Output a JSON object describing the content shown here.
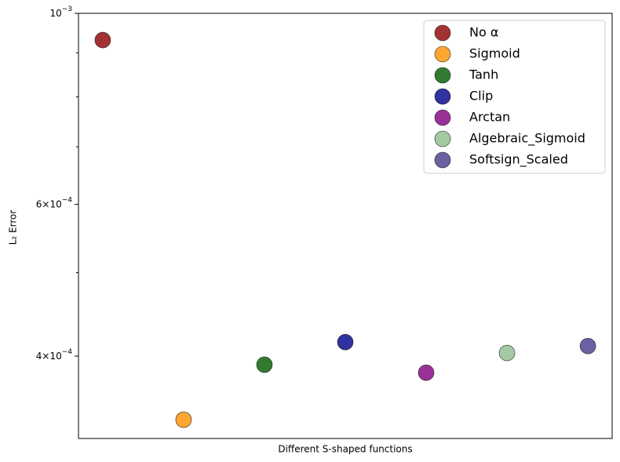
{
  "chart_data": {
    "type": "scatter",
    "xlabel": "Different S-shaped functions",
    "ylabel": "L₂ Error",
    "log_y": true,
    "xlim": [
      -0.3,
      6.3
    ],
    "ylim": [
      0.000321,
      0.001
    ],
    "yticks": [
      {
        "value": 0.0004,
        "label": "4×10",
        "exponent": "−4"
      },
      {
        "value": 0.0006,
        "label": "6×10",
        "exponent": "−4"
      },
      {
        "value": 0.001,
        "label": "10",
        "exponent": "−3"
      }
    ],
    "yminor_ticks": [
      0.0005,
      0.0007,
      0.0008,
      0.0009
    ],
    "legend": "upper right",
    "series": [
      {
        "name": "No α",
        "color": "#9b1c1c",
        "x": [
          0
        ],
        "values": [
          0.000931
        ]
      },
      {
        "name": "Sigmoid",
        "color": "#ff9c1c",
        "x": [
          1
        ],
        "values": [
          0.0003375
        ]
      },
      {
        "name": "Tanh",
        "color": "#1b6e1b",
        "x": [
          2
        ],
        "values": [
          0.000391
        ]
      },
      {
        "name": "Clip",
        "color": "#1b1b96",
        "x": [
          3
        ],
        "values": [
          0.0004153
        ]
      },
      {
        "name": "Arctan",
        "color": "#8e1b8e",
        "x": [
          4
        ],
        "values": [
          0.0003827
        ]
      },
      {
        "name": "Algebraic_Sigmoid",
        "color": "#99c499",
        "x": [
          5
        ],
        "values": [
          0.0004034
        ]
      },
      {
        "name": "Softsign_Scaled",
        "color": "#5a4f98",
        "x": [
          6
        ],
        "values": [
          0.000411
        ]
      }
    ]
  }
}
